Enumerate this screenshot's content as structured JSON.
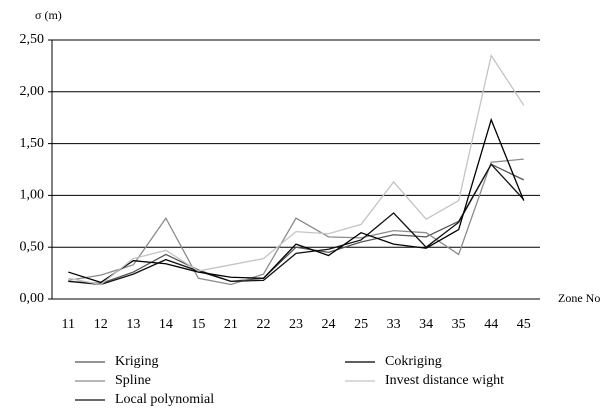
{
  "chart_data": {
    "type": "line",
    "ylabel": "σ (m)",
    "xlabel": "Zone No",
    "categories": [
      "11",
      "12",
      "13",
      "14",
      "15",
      "21",
      "22",
      "23",
      "24",
      "25",
      "33",
      "34",
      "35",
      "44",
      "45"
    ],
    "series": [
      {
        "name": "Kriging",
        "color": "#555555",
        "values": [
          0.17,
          0.15,
          0.26,
          0.43,
          0.28,
          0.17,
          0.2,
          0.5,
          0.45,
          0.55,
          0.62,
          0.6,
          0.75,
          1.3,
          1.15
        ]
      },
      {
        "name": "Spline",
        "color": "#8c8c8c",
        "values": [
          0.18,
          0.23,
          0.33,
          0.78,
          0.2,
          0.14,
          0.24,
          0.78,
          0.6,
          0.59,
          0.66,
          0.64,
          0.43,
          1.32,
          1.35
        ]
      },
      {
        "name": "Local polynomial",
        "color": "#111111",
        "values": [
          0.17,
          0.14,
          0.24,
          0.38,
          0.27,
          0.17,
          0.18,
          0.44,
          0.48,
          0.57,
          0.83,
          0.5,
          0.74,
          1.3,
          0.96
        ]
      },
      {
        "name": "Cokriging",
        "color": "#000000",
        "values": [
          0.26,
          0.16,
          0.37,
          0.34,
          0.26,
          0.21,
          0.2,
          0.53,
          0.42,
          0.64,
          0.53,
          0.49,
          0.67,
          1.73,
          0.95
        ]
      },
      {
        "name": "Invest distance wight",
        "color": "#c4c4c4",
        "values": [
          0.2,
          0.14,
          0.39,
          0.47,
          0.27,
          0.33,
          0.39,
          0.65,
          0.63,
          0.72,
          1.13,
          0.77,
          0.95,
          2.35,
          1.87
        ]
      }
    ],
    "ylim": [
      0,
      2.5
    ],
    "yticks": [
      {
        "value": 0,
        "label": "0,00"
      },
      {
        "value": 0.5,
        "label": "0,50"
      },
      {
        "value": 1,
        "label": "1,00"
      },
      {
        "value": 1.5,
        "label": "1,50"
      },
      {
        "value": 2,
        "label": "2,00"
      },
      {
        "value": 2.5,
        "label": "2,50"
      }
    ],
    "grid": true
  }
}
